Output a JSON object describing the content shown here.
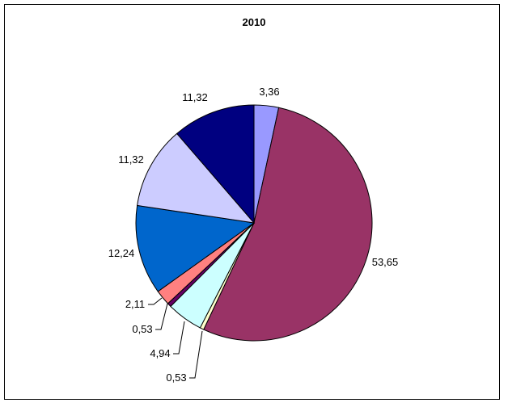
{
  "chart_data": {
    "type": "pie",
    "title": "2010",
    "slices": [
      {
        "label": "3,36",
        "value": 3.36,
        "color": "#9999ff"
      },
      {
        "label": "53,65",
        "value": 53.65,
        "color": "#993366"
      },
      {
        "label": "0,53",
        "value": 0.53,
        "color": "#ffffcc"
      },
      {
        "label": "4,94",
        "value": 4.94,
        "color": "#ccffff"
      },
      {
        "label": "0,53",
        "value": 0.53,
        "color": "#660066"
      },
      {
        "label": "2,11",
        "value": 2.11,
        "color": "#ff8080"
      },
      {
        "label": "12,24",
        "value": 12.24,
        "color": "#0066cc"
      },
      {
        "label": "11,32",
        "value": 11.32,
        "color": "#ccccff"
      },
      {
        "label": "11,32",
        "value": 11.32,
        "color": "#000080"
      }
    ],
    "start_angle": "12 o'clock",
    "direction": "clockwise",
    "legend": "none"
  }
}
